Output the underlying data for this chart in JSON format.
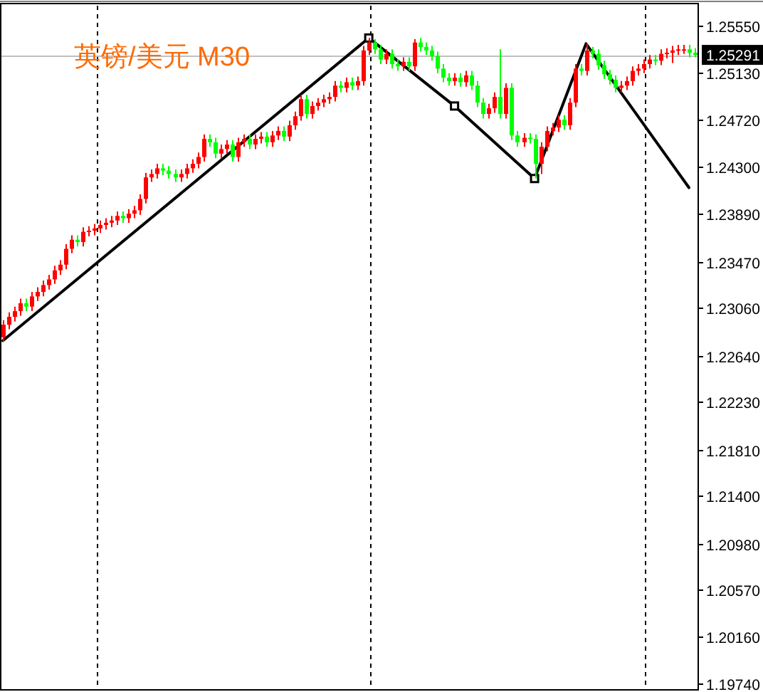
{
  "chart_data": {
    "type": "candlestick",
    "title": "英镑/美元 M30",
    "categories": [
      null,
      null,
      null,
      null,
      null,
      null,
      null,
      null,
      null,
      null,
      null,
      null,
      null,
      null,
      null,
      null,
      null,
      null,
      null,
      null,
      null,
      null,
      null,
      null,
      null,
      null,
      null,
      null,
      null,
      null,
      null,
      null,
      null,
      null,
      null,
      null,
      null,
      null,
      null,
      null,
      null,
      null,
      null,
      null,
      null,
      null,
      null,
      null,
      null,
      null,
      null,
      null,
      null,
      null,
      null,
      null,
      null,
      null,
      null,
      null,
      null,
      null,
      null,
      null,
      null,
      null,
      null,
      null,
      null,
      null,
      null,
      null,
      null,
      null,
      null,
      null,
      null,
      null,
      null,
      null,
      null,
      null,
      null,
      null,
      null,
      null,
      null,
      null,
      null,
      null,
      null,
      null,
      null,
      null,
      null,
      null,
      null,
      null,
      null,
      null,
      null,
      null,
      null,
      null,
      null,
      null,
      null,
      null,
      null,
      null,
      null,
      null,
      null,
      null,
      null,
      null,
      null,
      null,
      null,
      null,
      null,
      null
    ],
    "ohlc": [
      [
        1.228,
        1.2295,
        1.2276,
        1.2291
      ],
      [
        1.2291,
        1.2302,
        1.2287,
        1.2298
      ],
      [
        1.2298,
        1.2307,
        1.2294,
        1.2303
      ],
      [
        1.2303,
        1.2314,
        1.2299,
        1.231
      ],
      [
        1.231,
        1.2314,
        1.2303,
        1.2307
      ],
      [
        1.2307,
        1.232,
        1.2303,
        1.2316
      ],
      [
        1.2316,
        1.2324,
        1.2312,
        1.232
      ],
      [
        1.232,
        1.233,
        1.2316,
        1.2326
      ],
      [
        1.2326,
        1.2335,
        1.2322,
        1.2331
      ],
      [
        1.2331,
        1.2343,
        1.2327,
        1.2339
      ],
      [
        1.2339,
        1.2348,
        1.2335,
        1.2344
      ],
      [
        1.2344,
        1.2362,
        1.234,
        1.2358
      ],
      [
        1.2358,
        1.237,
        1.2354,
        1.2366
      ],
      [
        1.2366,
        1.237,
        1.236,
        1.2364
      ],
      [
        1.2364,
        1.2377,
        1.236,
        1.2373
      ],
      [
        1.2373,
        1.2378,
        1.2369,
        1.2374
      ],
      [
        1.2374,
        1.238,
        1.237,
        1.2376
      ],
      [
        1.2376,
        1.2383,
        1.2372,
        1.2379
      ],
      [
        1.2379,
        1.2385,
        1.2375,
        1.2381
      ],
      [
        1.2381,
        1.2387,
        1.2377,
        1.2383
      ],
      [
        1.2383,
        1.2391,
        1.2379,
        1.2387
      ],
      [
        1.2387,
        1.2391,
        1.2381,
        1.2385
      ],
      [
        1.2385,
        1.2393,
        1.2381,
        1.2389
      ],
      [
        1.2389,
        1.2396,
        1.2385,
        1.2392
      ],
      [
        1.2392,
        1.2406,
        1.2388,
        1.2402
      ],
      [
        1.2402,
        1.2425,
        1.2398,
        1.2421
      ],
      [
        1.2421,
        1.2428,
        1.2417,
        1.2424
      ],
      [
        1.2424,
        1.2433,
        1.242,
        1.2429
      ],
      [
        1.2429,
        1.2433,
        1.2423,
        1.2427
      ],
      [
        1.2427,
        1.2431,
        1.242,
        1.2424
      ],
      [
        1.2424,
        1.2428,
        1.2417,
        1.2421
      ],
      [
        1.2421,
        1.2428,
        1.2417,
        1.2424
      ],
      [
        1.2424,
        1.2433,
        1.242,
        1.2429
      ],
      [
        1.2429,
        1.2437,
        1.2425,
        1.2433
      ],
      [
        1.2433,
        1.2443,
        1.2429,
        1.2439
      ],
      [
        1.2439,
        1.2459,
        1.2435,
        1.2455
      ],
      [
        1.2455,
        1.2459,
        1.2448,
        1.2452
      ],
      [
        1.2452,
        1.2456,
        1.2438,
        1.2442
      ],
      [
        1.2442,
        1.245,
        1.2438,
        1.2446
      ],
      [
        1.2446,
        1.2454,
        1.2442,
        1.245
      ],
      [
        1.245,
        1.2454,
        1.2435,
        1.2439
      ],
      [
        1.2439,
        1.2456,
        1.2435,
        1.2452
      ],
      [
        1.2452,
        1.2459,
        1.2448,
        1.2455
      ],
      [
        1.2455,
        1.2459,
        1.2446,
        1.245
      ],
      [
        1.245,
        1.2459,
        1.2446,
        1.2455
      ],
      [
        1.2455,
        1.2461,
        1.2451,
        1.2457
      ],
      [
        1.2457,
        1.2461,
        1.2448,
        1.2452
      ],
      [
        1.2452,
        1.2462,
        1.2448,
        1.2458
      ],
      [
        1.2458,
        1.2466,
        1.2454,
        1.2462
      ],
      [
        1.2462,
        1.2466,
        1.2453,
        1.2457
      ],
      [
        1.2457,
        1.2471,
        1.2453,
        1.2467
      ],
      [
        1.2467,
        1.2479,
        1.2463,
        1.2475
      ],
      [
        1.2475,
        1.2494,
        1.2471,
        1.249
      ],
      [
        1.249,
        1.2494,
        1.2473,
        1.2477
      ],
      [
        1.2477,
        1.2488,
        1.2473,
        1.2484
      ],
      [
        1.2484,
        1.2491,
        1.248,
        1.2487
      ],
      [
        1.2487,
        1.2494,
        1.2483,
        1.249
      ],
      [
        1.249,
        1.2496,
        1.2486,
        1.2492
      ],
      [
        1.2492,
        1.2506,
        1.2488,
        1.2502
      ],
      [
        1.2502,
        1.2506,
        1.2496,
        1.25
      ],
      [
        1.25,
        1.2509,
        1.2496,
        1.2505
      ],
      [
        1.2505,
        1.2509,
        1.2498,
        1.2502
      ],
      [
        1.2502,
        1.251,
        1.2498,
        1.2506
      ],
      [
        1.2506,
        1.2537,
        1.2502,
        1.2533
      ],
      [
        1.2533,
        1.2544,
        1.2529,
        1.254
      ],
      [
        1.254,
        1.2543,
        1.253,
        1.2534
      ],
      [
        1.2534,
        1.2538,
        1.2521,
        1.2525
      ],
      [
        1.2525,
        1.2534,
        1.2521,
        1.253
      ],
      [
        1.253,
        1.2534,
        1.2517,
        1.2521
      ],
      [
        1.2521,
        1.2525,
        1.2515,
        1.2519
      ],
      [
        1.2519,
        1.2527,
        1.2515,
        1.2523
      ],
      [
        1.2523,
        1.2527,
        1.2515,
        1.2519
      ],
      [
        1.2519,
        1.2543,
        1.2515,
        1.254
      ],
      [
        1.254,
        1.2544,
        1.2532,
        1.2536
      ],
      [
        1.2536,
        1.254,
        1.2529,
        1.2533
      ],
      [
        1.2533,
        1.2537,
        1.2524,
        1.2528
      ],
      [
        1.2528,
        1.2532,
        1.2513,
        1.2517
      ],
      [
        1.2517,
        1.2521,
        1.2505,
        1.2509
      ],
      [
        1.2509,
        1.2513,
        1.2502,
        1.2506
      ],
      [
        1.2506,
        1.2513,
        1.2502,
        1.2509
      ],
      [
        1.2509,
        1.2513,
        1.2501,
        1.2505
      ],
      [
        1.2505,
        1.2515,
        1.2501,
        1.2511
      ],
      [
        1.2511,
        1.2515,
        1.2498,
        1.2502
      ],
      [
        1.2502,
        1.2506,
        1.2483,
        1.2487
      ],
      [
        1.2487,
        1.2491,
        1.2473,
        1.2477
      ],
      [
        1.2477,
        1.2486,
        1.2473,
        1.2482
      ],
      [
        1.2482,
        1.2496,
        1.2478,
        1.2492
      ],
      [
        1.2492,
        1.2534,
        1.2473,
        1.2477
      ],
      [
        1.2477,
        1.2504,
        1.2473,
        1.25
      ],
      [
        1.25,
        1.2504,
        1.2454,
        1.2458
      ],
      [
        1.2458,
        1.2462,
        1.2448,
        1.2452
      ],
      [
        1.2452,
        1.246,
        1.2448,
        1.2456
      ],
      [
        1.2456,
        1.246,
        1.2451,
        1.2455
      ],
      [
        1.2455,
        1.2459,
        1.242,
        1.2433
      ],
      [
        1.2433,
        1.2452,
        1.2424,
        1.2448
      ],
      [
        1.2448,
        1.2466,
        1.2444,
        1.2462
      ],
      [
        1.2462,
        1.2469,
        1.2458,
        1.2465
      ],
      [
        1.2465,
        1.2476,
        1.2461,
        1.2472
      ],
      [
        1.2472,
        1.2476,
        1.2463,
        1.2467
      ],
      [
        1.2467,
        1.2491,
        1.2463,
        1.2487
      ],
      [
        1.2487,
        1.2521,
        1.2483,
        1.2517
      ],
      [
        1.2517,
        1.2521,
        1.2511,
        1.2515
      ],
      [
        1.2515,
        1.2539,
        1.2511,
        1.2533
      ],
      [
        1.2533,
        1.2536,
        1.2526,
        1.253
      ],
      [
        1.253,
        1.2534,
        1.2516,
        1.252
      ],
      [
        1.252,
        1.2524,
        1.2508,
        1.2512
      ],
      [
        1.2512,
        1.2516,
        1.2503,
        1.2507
      ],
      [
        1.2507,
        1.2511,
        1.2496,
        1.25
      ],
      [
        1.25,
        1.2506,
        1.2496,
        1.2502
      ],
      [
        1.2502,
        1.251,
        1.2498,
        1.2506
      ],
      [
        1.2506,
        1.2519,
        1.2502,
        1.2515
      ],
      [
        1.2515,
        1.2521,
        1.2511,
        1.2517
      ],
      [
        1.2517,
        1.2525,
        1.2513,
        1.2521
      ],
      [
        1.2521,
        1.2529,
        1.2517,
        1.2525
      ],
      [
        1.2525,
        1.2529,
        1.252,
        1.2524
      ],
      [
        1.2524,
        1.2534,
        1.252,
        1.253
      ],
      [
        1.253,
        1.2535,
        1.2526,
        1.2531
      ],
      [
        1.2531,
        1.2537,
        1.2522,
        1.2533
      ],
      [
        1.2533,
        1.2538,
        1.2529,
        1.2534
      ],
      [
        1.2533,
        1.2538,
        1.253,
        1.2534
      ],
      [
        1.2534,
        1.2538,
        1.2527,
        1.2531
      ],
      [
        1.2531,
        1.2535,
        1.2527,
        1.25291
      ]
    ],
    "colors": [
      "#ff0000",
      "#ff0000",
      "#ff0000",
      "#ff0000",
      "#00ff00",
      "#ff0000",
      "#ff0000",
      "#ff0000",
      "#ff0000",
      "#ff0000",
      "#ff0000",
      "#ff0000",
      "#ff0000",
      "#00ff00",
      "#ff0000",
      "#ff0000",
      "#ff0000",
      "#ff0000",
      "#ff0000",
      "#ff0000",
      "#ff0000",
      "#00ff00",
      "#ff0000",
      "#ff0000",
      "#ff0000",
      "#ff0000",
      "#ff0000",
      "#ff0000",
      "#00ff00",
      "#00ff00",
      "#00ff00",
      "#ff0000",
      "#ff0000",
      "#ff0000",
      "#ff0000",
      "#ff0000",
      "#00ff00",
      "#00ff00",
      "#ff0000",
      "#ff0000",
      "#00ff00",
      "#ff0000",
      "#ff0000",
      "#00ff00",
      "#ff0000",
      "#ff0000",
      "#00ff00",
      "#ff0000",
      "#ff0000",
      "#00ff00",
      "#ff0000",
      "#ff0000",
      "#ff0000",
      "#00ff00",
      "#ff0000",
      "#ff0000",
      "#ff0000",
      "#ff0000",
      "#ff0000",
      "#00ff00",
      "#ff0000",
      "#00ff00",
      "#ff0000",
      "#ff0000",
      "#ff0000",
      "#00ff00",
      "#00ff00",
      "#ff0000",
      "#00ff00",
      "#00ff00",
      "#ff0000",
      "#00ff00",
      "#ff0000",
      "#00ff00",
      "#00ff00",
      "#00ff00",
      "#00ff00",
      "#00ff00",
      "#00ff00",
      "#ff0000",
      "#00ff00",
      "#ff0000",
      "#00ff00",
      "#00ff00",
      "#00ff00",
      "#ff0000",
      "#ff0000",
      "#00ff00",
      "#ff0000",
      "#00ff00",
      "#00ff00",
      "#ff0000",
      "#00ff00",
      "#00ff00",
      "#ff0000",
      "#ff0000",
      "#ff0000",
      "#ff0000",
      "#00ff00",
      "#ff0000",
      "#ff0000",
      "#00ff00",
      "#ff0000",
      "#00ff00",
      "#00ff00",
      "#00ff00",
      "#00ff00",
      "#00ff00",
      "#ff0000",
      "#ff0000",
      "#ff0000",
      "#ff0000",
      "#ff0000",
      "#ff0000",
      "#00ff00",
      "#ff0000",
      "#ff0000",
      "#ff0000",
      "#ff0000",
      "#ff0000",
      "#00ff00",
      "#00ff00"
    ],
    "series": [
      {
        "type": "line",
        "color": "#000000",
        "values": [
          1.2277,
          null,
          null,
          null,
          null,
          null,
          null,
          null,
          null,
          null,
          null,
          null,
          null,
          null,
          null,
          null,
          null,
          null,
          null,
          null,
          null,
          null,
          null,
          null,
          null,
          null,
          null,
          null,
          null,
          null,
          null,
          null,
          null,
          null,
          null,
          null,
          null,
          null,
          null,
          null,
          null,
          null,
          null,
          null,
          null,
          null,
          null,
          null,
          null,
          null,
          null,
          null,
          null,
          null,
          null,
          null,
          null,
          null,
          null,
          null,
          null,
          null,
          null,
          null,
          1.2544,
          null,
          null,
          null,
          null,
          null,
          null,
          null,
          null,
          null,
          null,
          null,
          null,
          null,
          null,
          1.2484,
          null,
          null,
          null,
          null,
          null,
          null,
          null,
          null,
          null,
          null,
          null,
          null,
          null,
          1.242,
          null,
          null,
          null,
          null,
          null,
          null,
          null,
          null,
          1.2539,
          null,
          null,
          null,
          null,
          null,
          null,
          null,
          null,
          null,
          null,
          null,
          null,
          null,
          null,
          null,
          null,
          null,
          1.2412,
          null
        ]
      },
      {
        "type": "scatter",
        "color": "#000000",
        "marker": "square",
        "values": [
          null,
          null,
          null,
          null,
          null,
          null,
          null,
          null,
          null,
          null,
          null,
          null,
          null,
          null,
          null,
          null,
          null,
          null,
          null,
          null,
          null,
          null,
          null,
          null,
          null,
          null,
          null,
          null,
          null,
          null,
          null,
          null,
          null,
          null,
          null,
          null,
          null,
          null,
          null,
          null,
          null,
          null,
          null,
          null,
          null,
          null,
          null,
          null,
          null,
          null,
          null,
          null,
          null,
          null,
          null,
          null,
          null,
          null,
          null,
          null,
          null,
          null,
          null,
          null,
          1.2544,
          null,
          null,
          null,
          null,
          null,
          null,
          null,
          null,
          null,
          null,
          null,
          null,
          null,
          null,
          1.2484,
          null,
          null,
          null,
          null,
          null,
          null,
          null,
          null,
          null,
          null,
          null,
          null,
          null,
          1.242,
          null,
          null,
          null,
          null,
          null,
          null,
          null,
          null,
          null,
          null,
          null,
          null,
          null,
          null,
          null,
          null,
          null,
          null,
          null,
          null,
          null,
          null,
          null,
          null,
          null,
          null,
          null,
          null
        ]
      }
    ],
    "ylim": [
      1.19695,
      1.25725
    ],
    "yticks": [
      {
        "value": 1.2555,
        "label": "1.25550"
      },
      {
        "value": 1.2513,
        "label": "1.25130"
      },
      {
        "value": 1.2472,
        "label": "1.24720"
      },
      {
        "value": 1.243,
        "label": "1.24300"
      },
      {
        "value": 1.2389,
        "label": "1.23890"
      },
      {
        "value": 1.2347,
        "label": "1.23470"
      },
      {
        "value": 1.2306,
        "label": "1.23060"
      },
      {
        "value": 1.2264,
        "label": "1.22640"
      },
      {
        "value": 1.2223,
        "label": "1.22230"
      },
      {
        "value": 1.2181,
        "label": "1.21810"
      },
      {
        "value": 1.214,
        "label": "1.21400"
      },
      {
        "value": 1.2098,
        "label": "1.20980"
      },
      {
        "value": 1.2057,
        "label": "1.20570"
      },
      {
        "value": 1.2016,
        "label": "1.20160"
      },
      {
        "value": 1.1974,
        "label": "1.19740"
      }
    ],
    "ref_lines": [
      {
        "axis": "y",
        "value": 1.25291,
        "label": "1.25291",
        "color": "#c0c0c0"
      }
    ],
    "tick_labels": "y"
  }
}
